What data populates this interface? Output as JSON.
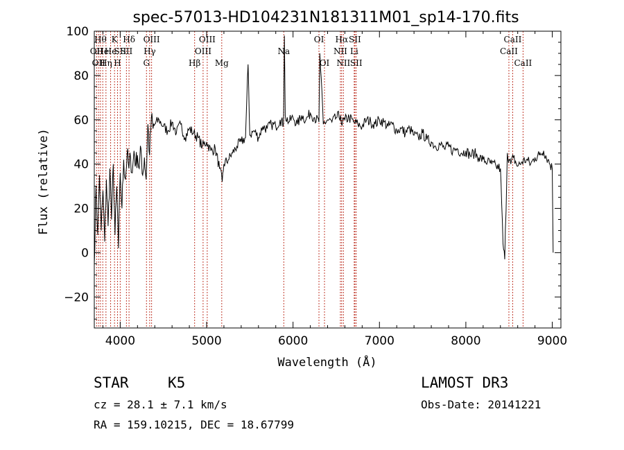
{
  "chart_data": {
    "type": "line",
    "title": "spec-57013-HD104231N181311M01_sp14-170.fits",
    "xlabel": "Wavelength (Å)",
    "ylabel": "Flux (relative)",
    "xlim": [
      3700,
      9100
    ],
    "ylim": [
      -34,
      100
    ],
    "x_ticks": [
      4000,
      5000,
      6000,
      7000,
      8000,
      9000
    ],
    "x_tick_labels": [
      "4000",
      "5000",
      "6000",
      "7000",
      "8000",
      "9000"
    ],
    "y_ticks": [
      -20,
      0,
      20,
      40,
      60,
      80,
      100
    ],
    "y_tick_labels": [
      "−20",
      "0",
      "20",
      "40",
      "60",
      "80",
      "100"
    ],
    "grid": false,
    "series": [
      {
        "name": "flux",
        "x": [
          3700,
          3720,
          3740,
          3760,
          3780,
          3800,
          3820,
          3840,
          3860,
          3880,
          3900,
          3920,
          3940,
          3960,
          3980,
          4000,
          4020,
          4040,
          4060,
          4080,
          4100,
          4120,
          4140,
          4160,
          4180,
          4200,
          4220,
          4240,
          4260,
          4280,
          4300,
          4320,
          4340,
          4360,
          4380,
          4400,
          4450,
          4500,
          4550,
          4600,
          4650,
          4700,
          4750,
          4800,
          4850,
          4900,
          4950,
          5000,
          5050,
          5100,
          5150,
          5180,
          5200,
          5250,
          5300,
          5350,
          5400,
          5450,
          5480,
          5500,
          5550,
          5600,
          5650,
          5700,
          5750,
          5800,
          5850,
          5890,
          5900,
          5910,
          5950,
          6000,
          6050,
          6100,
          6150,
          6200,
          6250,
          6300,
          6310,
          6350,
          6400,
          6450,
          6500,
          6550,
          6560,
          6600,
          6650,
          6700,
          6750,
          6800,
          6850,
          6900,
          6950,
          7000,
          7050,
          7100,
          7150,
          7200,
          7250,
          7300,
          7350,
          7400,
          7450,
          7500,
          7550,
          7600,
          7650,
          7700,
          7750,
          7800,
          7850,
          7900,
          7950,
          8000,
          8050,
          8100,
          8150,
          8200,
          8250,
          8300,
          8350,
          8400,
          8430,
          8450,
          8480,
          8500,
          8520,
          8550,
          8600,
          8650,
          8700,
          8750,
          8800,
          8850,
          8900,
          8950,
          9000,
          9010
        ],
        "values": [
          -5,
          30,
          8,
          35,
          10,
          28,
          5,
          33,
          12,
          38,
          15,
          40,
          8,
          30,
          2,
          36,
          20,
          42,
          33,
          45,
          38,
          43,
          36,
          46,
          40,
          44,
          38,
          47,
          35,
          43,
          33,
          58,
          44,
          61,
          56,
          58,
          60,
          57,
          55,
          59,
          54,
          58,
          52,
          56,
          54,
          52,
          48,
          50,
          46,
          47,
          38,
          32,
          40,
          42,
          45,
          48,
          50,
          52,
          85,
          53,
          55,
          52,
          57,
          56,
          58,
          57,
          60,
          58,
          98,
          62,
          59,
          61,
          58,
          62,
          60,
          63,
          61,
          59,
          90,
          58,
          60,
          59,
          61,
          62,
          58,
          60,
          61,
          59,
          58,
          57,
          60,
          59,
          58,
          60,
          59,
          57,
          58,
          55,
          56,
          54,
          56,
          53,
          52,
          54,
          51,
          50,
          48,
          49,
          47,
          48,
          46,
          47,
          45,
          46,
          44,
          45,
          43,
          42,
          41,
          40,
          39,
          38,
          4,
          -3,
          45,
          42,
          40,
          43,
          39,
          41,
          42,
          40,
          43,
          44,
          46,
          42,
          38,
          0
        ],
        "color": "#000000"
      }
    ],
    "line_markers": [
      {
        "wave": 3727,
        "label": "OII",
        "row": 1
      },
      {
        "wave": 3750,
        "label": "OII",
        "row": 2
      },
      {
        "wave": 3771,
        "label": "Hθ",
        "row": 0
      },
      {
        "wave": 3798,
        "label": "He",
        "row": 1
      },
      {
        "wave": 3835,
        "label": "Hη",
        "row": 2
      },
      {
        "wave": 3889,
        "label": "He",
        "row": 1
      },
      {
        "wave": 3934,
        "label": "K",
        "row": 0
      },
      {
        "wave": 3969,
        "label": "H",
        "row": 2
      },
      {
        "wave": 4000,
        "label": "SII",
        "row": 1
      },
      {
        "wave": 4102,
        "label": "Hδ",
        "row": 0
      },
      {
        "wave": 4072,
        "label": "SII",
        "row": 1
      },
      {
        "wave": 4304,
        "label": "G",
        "row": 2
      },
      {
        "wave": 4341,
        "label": "Hγ",
        "row": 1
      },
      {
        "wave": 4363,
        "label": "OIII",
        "row": 0
      },
      {
        "wave": 4861,
        "label": "Hβ",
        "row": 2
      },
      {
        "wave": 4959,
        "label": "OIII",
        "row": 1
      },
      {
        "wave": 5007,
        "label": "OIII",
        "row": 0
      },
      {
        "wave": 5175,
        "label": "Mg",
        "row": 2
      },
      {
        "wave": 5893,
        "label": "Na",
        "row": 1
      },
      {
        "wave": 6300,
        "label": "OI",
        "row": 0
      },
      {
        "wave": 6364,
        "label": "OI",
        "row": 2
      },
      {
        "wave": 6548,
        "label": "NII",
        "row": 1
      },
      {
        "wave": 6563,
        "label": "Hα",
        "row": 0
      },
      {
        "wave": 6583,
        "label": "NII",
        "row": 2
      },
      {
        "wave": 6708,
        "label": "Li",
        "row": 1
      },
      {
        "wave": 6716,
        "label": "SII",
        "row": 0
      },
      {
        "wave": 6731,
        "label": "SII",
        "row": 2
      },
      {
        "wave": 8498,
        "label": "CaII",
        "row": 1
      },
      {
        "wave": 8542,
        "label": "CaII",
        "row": 0
      },
      {
        "wave": 8662,
        "label": "CaII",
        "row": 2
      }
    ],
    "marker_color": "#c0392b"
  },
  "info": {
    "object_class": "STAR",
    "subclass": "K5",
    "survey": "LAMOST DR3",
    "redshift": "cz = 28.1 ± 7.1 km/s",
    "obs_date": "Obs-Date: 20141221",
    "coords": "RA = 159.10215, DEC =  18.67799"
  }
}
